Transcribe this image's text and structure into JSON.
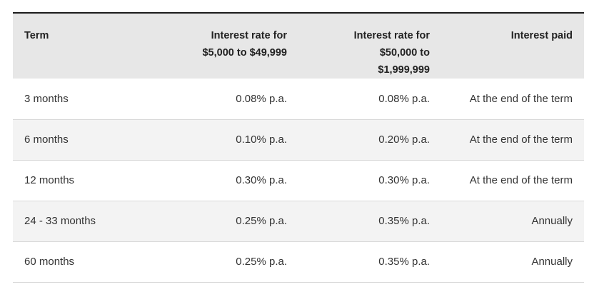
{
  "table": {
    "headers": {
      "term": "Term",
      "rate_low_line1": "Interest rate for",
      "rate_low_line2": "$5,000 to $49,999",
      "rate_high_line1": "Interest rate for",
      "rate_high_line2": "$50,000 to",
      "rate_high_line3": "$1,999,999",
      "interest_paid": "Interest paid"
    },
    "rows": [
      {
        "term": "3 months",
        "rate_low": "0.08% p.a.",
        "rate_high": "0.08% p.a.",
        "paid": "At the end of the term"
      },
      {
        "term": "6 months",
        "rate_low": "0.10% p.a.",
        "rate_high": "0.20% p.a.",
        "paid": "At the end of the term"
      },
      {
        "term": "12 months",
        "rate_low": "0.30% p.a.",
        "rate_high": "0.30% p.a.",
        "paid": "At the end of the term"
      },
      {
        "term": "24 - 33 months",
        "rate_low": "0.25% p.a.",
        "rate_high": "0.35% p.a.",
        "paid": "Annually"
      },
      {
        "term": "60 months",
        "rate_low": "0.25% p.a.",
        "rate_high": "0.35% p.a.",
        "paid": "Annually"
      }
    ]
  }
}
